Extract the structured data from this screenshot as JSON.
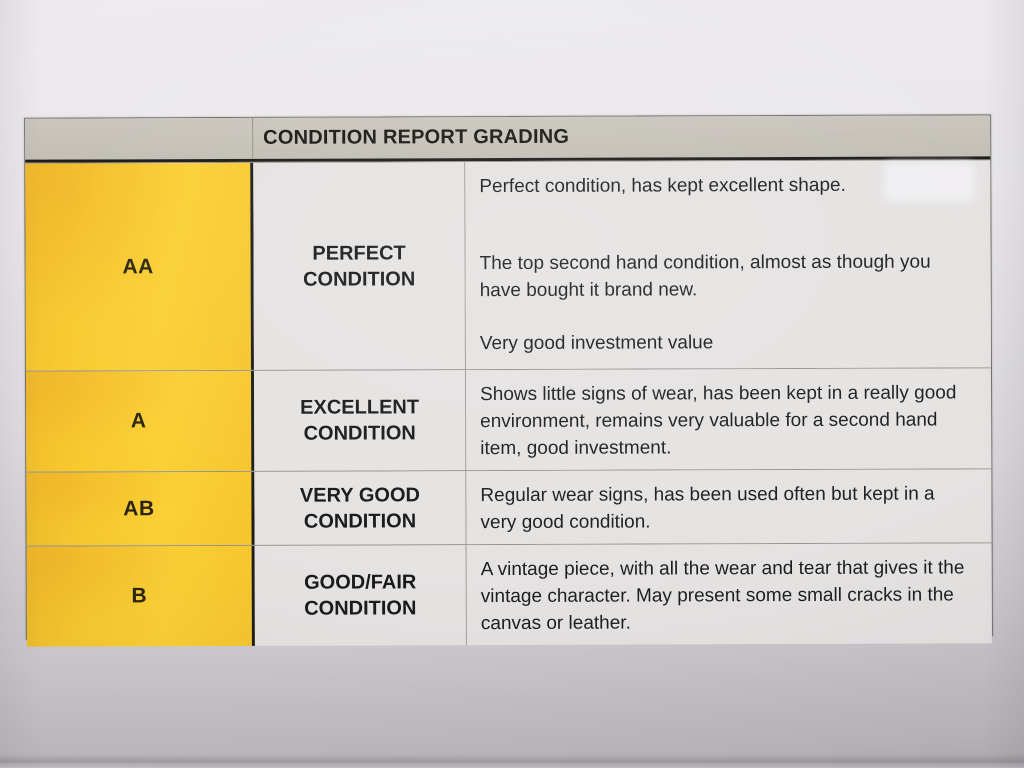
{
  "document": {
    "kind": "photographed printed condition grading table",
    "header": {
      "title": "CONDITION REPORT GRADING"
    },
    "rows": [
      {
        "grade": "AA",
        "name_lines": [
          "PERFECT",
          "CONDITION"
        ],
        "paragraphs": [
          "Perfect condition, has kept excellent shape.",
          "The top second hand condition, almost as though you have bought it brand new.",
          "Very good investment value"
        ]
      },
      {
        "grade": "A",
        "name_lines": [
          "EXCELLENT",
          "CONDITION"
        ],
        "paragraphs": [
          "Shows little signs of wear, has been kept in a really good environment, remains very valuable for a second hand item, good investment."
        ]
      },
      {
        "grade": "AB",
        "name_lines": [
          "VERY GOOD",
          "CONDITION"
        ],
        "paragraphs": [
          "Regular wear signs, has been used often but kept in a very good condition."
        ]
      },
      {
        "grade": "B",
        "name_lines": [
          "GOOD/FAIR",
          "CONDITION"
        ],
        "paragraphs": [
          "A vintage piece, with all the wear and tear that gives it the vintage character. May present some small cracks in the canvas or leather."
        ]
      }
    ],
    "colors": {
      "grade_cell_yellow": "#f7c92e",
      "header_bar_gray": "#c3bfb6",
      "paper": "#e7e5e8",
      "cell_background": "#e5e3e2",
      "ink": "#1d1c1d"
    }
  }
}
